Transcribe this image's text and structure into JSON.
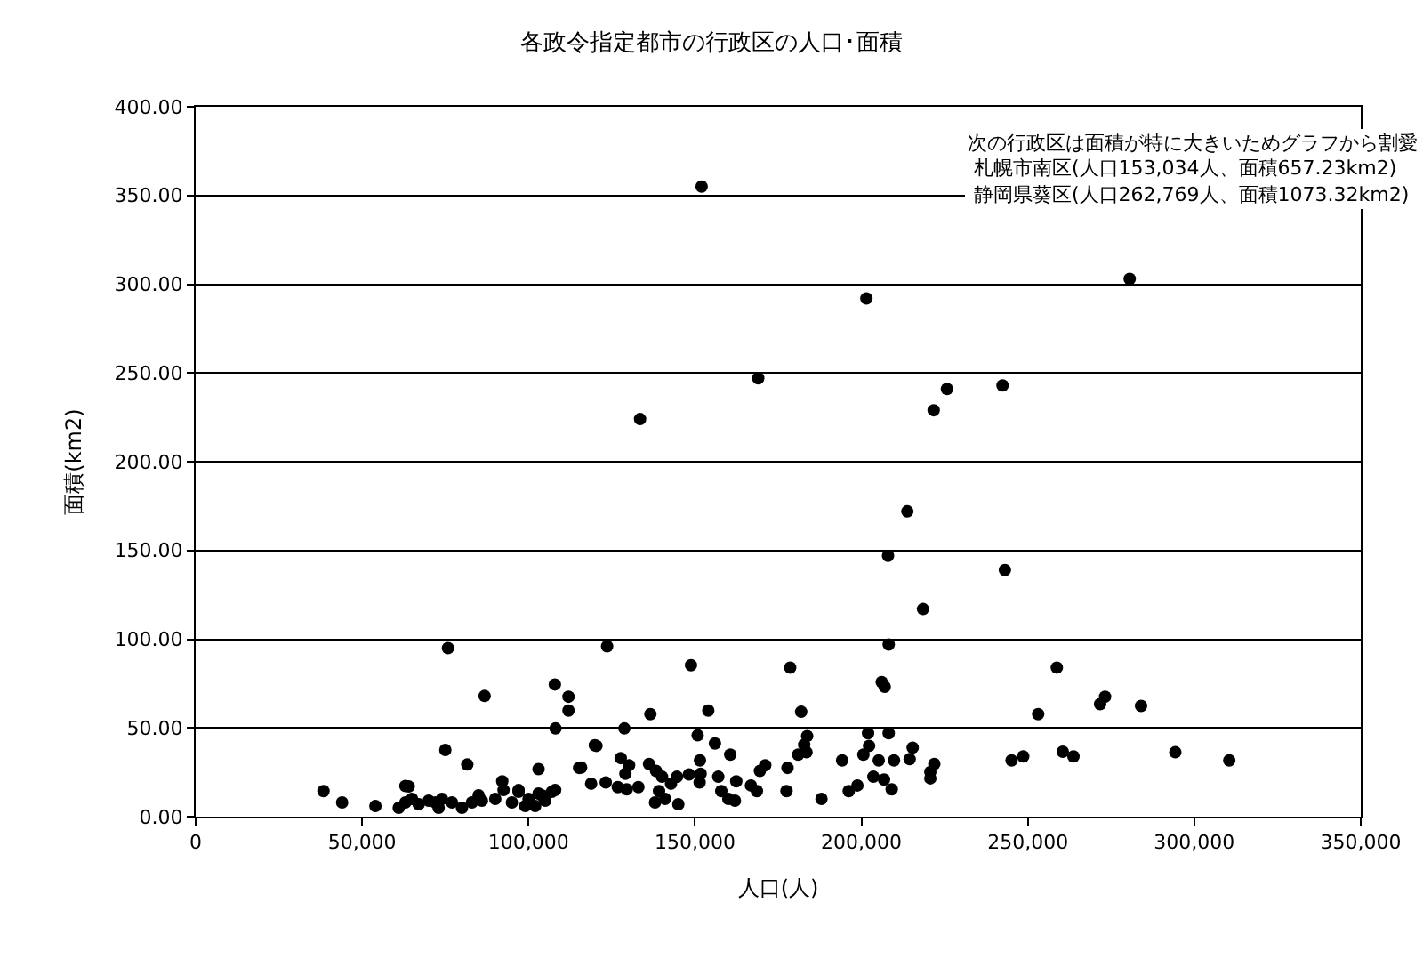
{
  "chart_data": {
    "type": "scatter",
    "title": "各政令指定都市の行政区の人口･面積",
    "xlabel": "人口(人)",
    "ylabel": "面積(km2)",
    "annotations": [
      "次の行政区は面積が特に大きいためグラフから割愛",
      " 札幌市南区(人口153,034人、面積657.23km2)",
      " 静岡県葵区(人口262,769人、面積1073.32km2)"
    ],
    "xlim": [
      0,
      350000
    ],
    "ylim": [
      0,
      400
    ],
    "xticks": [
      {
        "value": 0,
        "label": "0"
      },
      {
        "value": 50000,
        "label": "50,000"
      },
      {
        "value": 100000,
        "label": "100,000"
      },
      {
        "value": 150000,
        "label": "150,000"
      },
      {
        "value": 200000,
        "label": "200,000"
      },
      {
        "value": 250000,
        "label": "250,000"
      },
      {
        "value": 300000,
        "label": "300,000"
      },
      {
        "value": 350000,
        "label": "350,000"
      }
    ],
    "yticks": [
      {
        "value": 0,
        "label": "0.00"
      },
      {
        "value": 50,
        "label": "50.00"
      },
      {
        "value": 100,
        "label": "100.00"
      },
      {
        "value": 150,
        "label": "150.00"
      },
      {
        "value": 200,
        "label": "200.00"
      },
      {
        "value": 250,
        "label": "250.00"
      },
      {
        "value": 300,
        "label": "300.00"
      },
      {
        "value": 350,
        "label": "350.00"
      },
      {
        "value": 400,
        "label": "400.00"
      }
    ],
    "grid": "y",
    "marker": "circle",
    "series": [
      {
        "color": "#000000",
        "x": [
          152000,
          201500,
          280600,
          169000,
          133500,
          225700,
          221700,
          242400,
          213800,
          208000,
          243100,
          218500,
          75800,
          86800,
          107900,
          112000,
          112000,
          108100,
          75000,
          81600,
          63000,
          38400,
          92100,
          103000,
          115800,
          119900,
          92500,
          97000,
          103000,
          108000,
          123600,
          148800,
          178600,
          208200,
          206100,
          207000,
          136600,
          154000,
          181900,
          128800,
          120400,
          150800,
          156000,
          160600,
          183700,
          182800,
          181000,
          183500,
          202000,
          208200,
          202300,
          200600,
          215400,
          214500,
          209800,
          205200,
          194200,
          221900,
          220700,
          220700,
          151500,
          177800,
          171100,
          169500,
          115200,
          127700,
          130200,
          129100,
          136200,
          138300,
          140100,
          142800,
          144600,
          148200,
          151700,
          157000,
          151400,
          118800,
          123200,
          126800,
          133000,
          162400,
          166800,
          168600,
          177500,
          196200,
          198800,
          203600,
          206800,
          209100,
          129500,
          139200,
          157900,
          258700,
          273200,
          271700,
          284000,
          253100,
          245100,
          248600,
          260500,
          263700,
          294300,
          310500,
          44000,
          54000,
          61000,
          63000,
          64000,
          65000,
          67000,
          70000,
          72000,
          73000,
          74000,
          77000,
          80000,
          83000,
          85000,
          86000,
          90000,
          95000,
          97000,
          99000,
          100000,
          102000,
          104000,
          105000,
          107000,
          138000,
          141000,
          145000,
          160000,
          162000,
          188000
        ],
        "values": [
          355,
          292,
          303,
          247,
          224,
          241,
          229,
          243,
          172,
          147,
          139,
          117,
          95,
          68,
          74.5,
          67.6,
          59.8,
          49.7,
          37.6,
          29.4,
          17.3,
          14.4,
          19.9,
          26.8,
          27.7,
          40.2,
          15,
          15,
          13,
          15,
          96,
          85.3,
          84,
          97,
          75.8,
          73.2,
          57.8,
          59.8,
          59.1,
          49.7,
          39.9,
          45.8,
          41.2,
          35,
          45.4,
          40.5,
          35,
          36.3,
          47,
          47,
          39.9,
          35,
          38.9,
          32.4,
          31.7,
          31.7,
          31.7,
          29.7,
          25.2,
          21.6,
          31.7,
          27.5,
          29,
          25.8,
          27.5,
          33,
          29,
          24.2,
          29.7,
          25.8,
          22.5,
          18.6,
          22.5,
          23.8,
          24.2,
          22.5,
          19.3,
          18.6,
          19.3,
          16.7,
          16.7,
          19.9,
          17.6,
          14.4,
          14.4,
          14.4,
          17.6,
          22.5,
          20.9,
          15.4,
          15.4,
          14.4,
          14.4,
          84,
          67.6,
          63.4,
          62.4,
          57.8,
          31.7,
          34,
          36.6,
          34,
          36.3,
          31.7,
          8,
          6,
          5,
          8,
          17,
          10,
          7,
          9,
          8,
          5,
          10,
          8,
          5,
          8,
          12,
          9,
          10,
          8,
          14,
          6,
          10,
          6,
          12,
          9,
          14,
          8,
          10,
          7,
          10,
          9,
          10
        ]
      }
    ]
  }
}
